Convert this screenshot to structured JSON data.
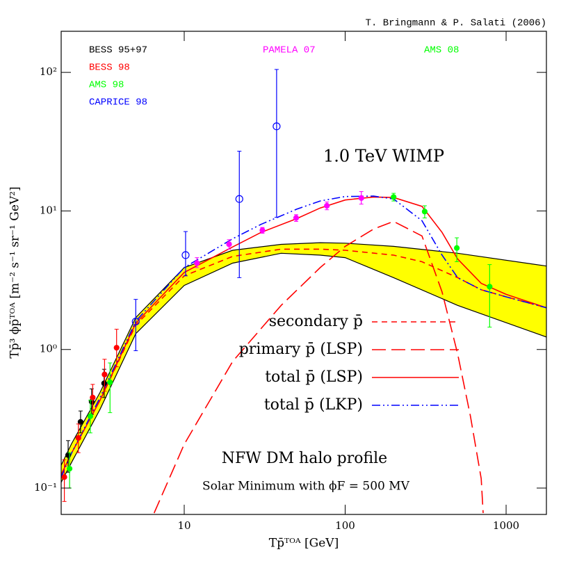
{
  "chart_data": {
    "type": "line",
    "credit": "T. Bringmann & P. Salati (2006)",
    "annotations": [
      "1.0 TeV WIMP",
      "NFW DM halo profile",
      "Solar Minimum with ϕF = 500 MV"
    ],
    "x_label": "Tp̄ᵀᴼᴬ   [GeV]",
    "y_label": "Tp̄³ ϕp̄ᵀᴼᴬ   [m⁻² s⁻¹ sr⁻¹ GeV²]",
    "xlim": [
      1.72,
      1780
    ],
    "ylim": [
      0.0645,
      198
    ],
    "log_x": true,
    "log_y": true,
    "xticks": [
      10,
      100,
      1000
    ],
    "yticks": [
      {
        "value": 0.1,
        "label": "10⁻¹"
      },
      {
        "value": 1,
        "label": "10⁰"
      },
      {
        "value": 10,
        "label": "10¹"
      },
      {
        "value": 100,
        "label": "10²"
      }
    ],
    "band": {
      "color": "#ffff00",
      "x": [
        1.72,
        2,
        3,
        5,
        10,
        20,
        40,
        70,
        100,
        200,
        500,
        1780
      ],
      "lower": [
        0.11,
        0.154,
        0.37,
        1.3,
        2.9,
        4.2,
        4.95,
        4.8,
        4.6,
        3.3,
        2.08,
        1.23
      ],
      "upper": [
        0.146,
        0.21,
        0.49,
        1.7,
        3.9,
        5.2,
        5.74,
        5.9,
        5.85,
        5.55,
        4.95,
        4.0
      ]
    },
    "series": [
      {
        "name": "secondary p̄",
        "color": "#ff0000",
        "dash": "dashed",
        "x": [
          1.72,
          2,
          3,
          5,
          10,
          20,
          40,
          70,
          100,
          200,
          300,
          500,
          700,
          1000,
          1780
        ],
        "values": [
          0.125,
          0.18,
          0.43,
          1.5,
          3.4,
          4.7,
          5.3,
          5.3,
          5.2,
          4.8,
          4.3,
          3.3,
          2.7,
          2.4,
          2.0
        ]
      },
      {
        "name": "primary p̄ (LSP)",
        "color": "#ff0000",
        "dash": "longdash",
        "x": [
          6.5,
          10,
          20,
          40,
          70,
          100,
          150,
          200,
          300,
          400,
          500,
          600,
          700,
          720
        ],
        "values": [
          0.066,
          0.207,
          0.82,
          2.08,
          3.9,
          5.55,
          7.4,
          8.4,
          6.6,
          2.6,
          0.93,
          0.33,
          0.117,
          0.066
        ]
      },
      {
        "name": "total p̄ (LSP)",
        "color": "#ff0000",
        "dash": "solid",
        "x": [
          1.72,
          2,
          3,
          5,
          10,
          20,
          30,
          50,
          70,
          100,
          150,
          200,
          300,
          400,
          500,
          700,
          1000,
          1780
        ],
        "values": [
          0.125,
          0.18,
          0.43,
          1.55,
          3.6,
          5.5,
          7.0,
          8.8,
          10.5,
          12,
          12.6,
          12.5,
          10.8,
          7.0,
          4.5,
          3.0,
          2.5,
          2.0
        ]
      },
      {
        "name": "total p̄ (LKP)",
        "color": "#0000ff",
        "dash": "dashdot",
        "x": [
          1.72,
          2,
          3,
          5,
          10,
          20,
          30,
          50,
          70,
          100,
          150,
          200,
          300,
          400,
          500,
          700,
          1000,
          1780
        ],
        "values": [
          0.12,
          0.18,
          0.45,
          1.6,
          3.9,
          6.3,
          8.0,
          10.3,
          11.8,
          12.7,
          12.8,
          12.2,
          8.5,
          4.8,
          3.3,
          2.7,
          2.4,
          2.0
        ]
      }
    ],
    "experiments": [
      {
        "name": "BESS 95+97",
        "color": "#000000",
        "marker": "filled",
        "x": [
          1.9,
          2.27,
          2.66,
          3.18
        ],
        "values": [
          0.173,
          0.3,
          0.42,
          0.57
        ],
        "ylo": [
          0.13,
          0.25,
          0.34,
          0.45
        ],
        "yhi": [
          0.22,
          0.36,
          0.52,
          0.72
        ]
      },
      {
        "name": "BESS 98",
        "color": "#ff0000",
        "marker": "filled",
        "x": [
          1.8,
          2.2,
          2.7,
          3.2,
          3.8
        ],
        "values": [
          0.12,
          0.23,
          0.45,
          0.66,
          1.03
        ],
        "ylo": [
          0.08,
          0.18,
          0.36,
          0.5,
          0.75
        ],
        "yhi": [
          0.16,
          0.29,
          0.56,
          0.85,
          1.4
        ]
      },
      {
        "name": "AMS 98",
        "color": "#00ff00",
        "marker": "filled",
        "x": [
          1.94,
          2.61,
          3.46
        ],
        "values": [
          0.138,
          0.33,
          0.58
        ],
        "ylo": [
          0.1,
          0.25,
          0.35
        ],
        "yhi": [
          0.18,
          0.43,
          0.8
        ]
      },
      {
        "name": "CAPRICE 98",
        "color": "#0000ff",
        "marker": "open",
        "x": [
          5.0,
          10.2,
          22,
          37.5
        ],
        "values": [
          1.59,
          4.8,
          12.2,
          40.8
        ],
        "ylo": [
          0.98,
          3.4,
          3.3,
          9
        ],
        "yhi": [
          2.3,
          7.1,
          27,
          105
        ]
      },
      {
        "name": "PAMELA 07",
        "color": "#ff00ff",
        "marker": "filled",
        "x": [
          12,
          19,
          30.6,
          49.6,
          77,
          126
        ],
        "values": [
          4.2,
          5.75,
          7.25,
          8.9,
          10.9,
          12.4
        ],
        "ylo": [
          3.9,
          5.3,
          6.9,
          8.4,
          10.2,
          11.2
        ],
        "yhi": [
          4.6,
          6.2,
          7.6,
          9.4,
          11.6,
          13.8
        ]
      },
      {
        "name": "AMS 08",
        "color": "#00ff00",
        "marker": "filled",
        "x": [
          200,
          312,
          494,
          790
        ],
        "values": [
          12.6,
          9.9,
          5.4,
          2.84
        ],
        "ylo": [
          11.8,
          8.9,
          4.3,
          1.45
        ],
        "yhi": [
          13.4,
          10.9,
          6.4,
          4.1
        ]
      }
    ]
  }
}
